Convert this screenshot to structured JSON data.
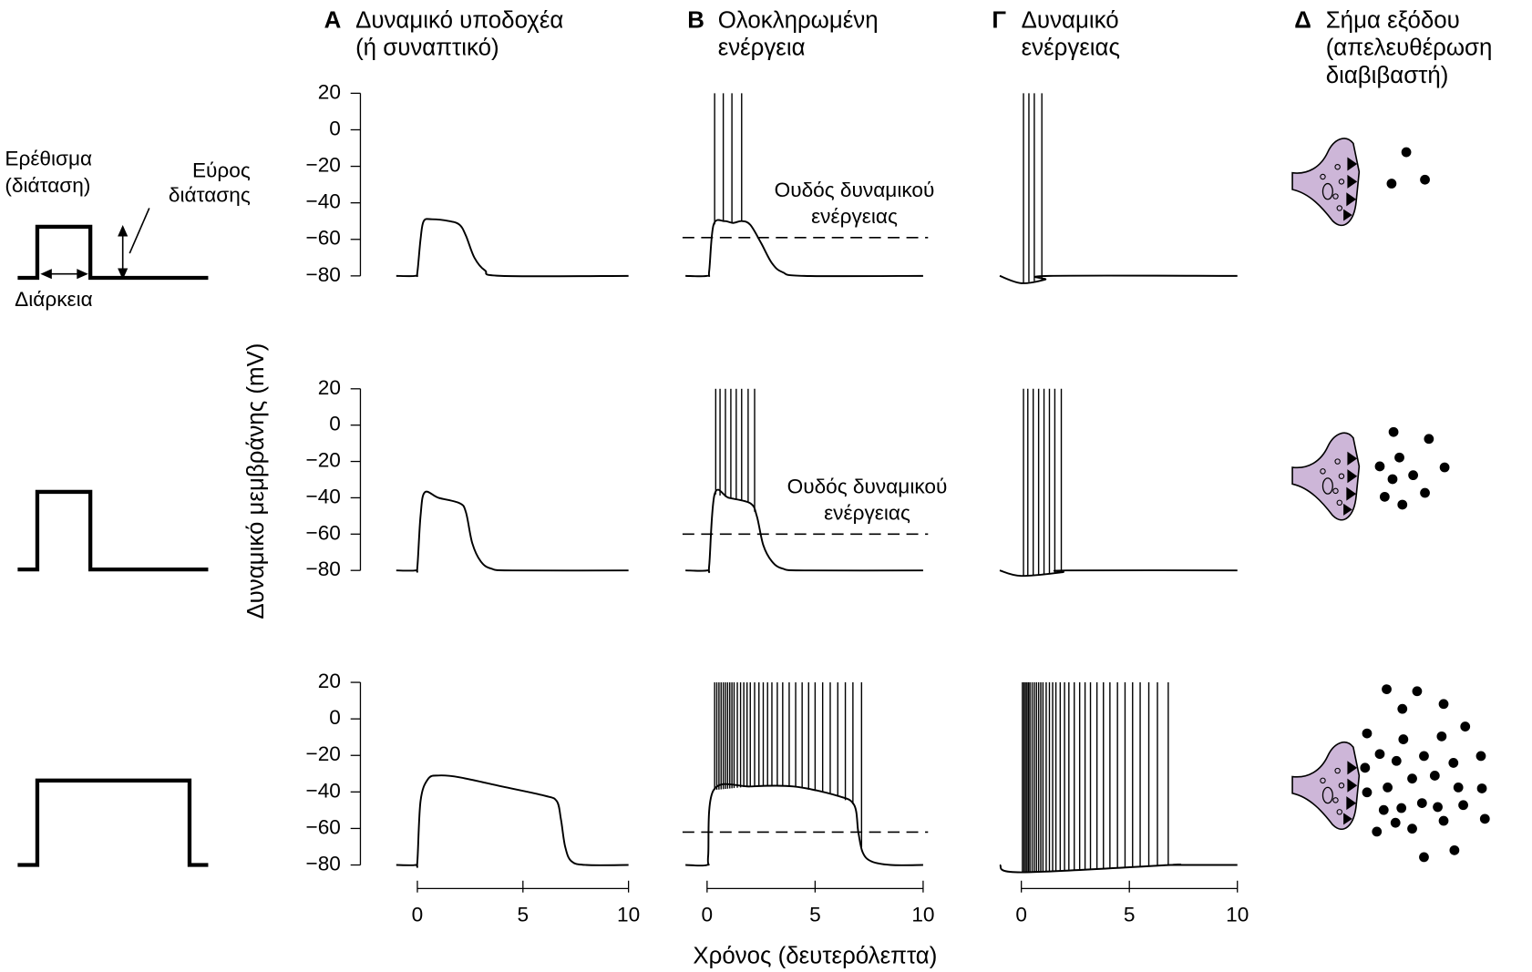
{
  "columns": [
    {
      "letter": "A",
      "title": [
        "Δυναμικό υποδοχέα",
        "(ή συναπτικό)"
      ]
    },
    {
      "letter": "B",
      "title": [
        "Ολοκληρωμένη",
        "ενέργεια"
      ]
    },
    {
      "letter": "Γ",
      "title": [
        "Δυναμικό",
        "ενέργειας"
      ]
    },
    {
      "letter": "Δ",
      "title": [
        "Σήμα εξόδου",
        "(απελευθέρωση",
        "διαβιβαστή)"
      ]
    }
  ],
  "stimulus": {
    "title": [
      "Ερέθισμα",
      "(διάταση)"
    ],
    "amplitude_label": [
      "Εύρος",
      "διάτασης"
    ],
    "duration_label": "Διάρκεια"
  },
  "y_axis_label": "Δυναμικό μεμβράνης (mV)",
  "x_axis_label": "Χρόνος (δευτερόλεπτα)",
  "chart_data": [
    {
      "type": "line",
      "xlim": [
        0,
        10
      ],
      "ylim": [
        -80,
        20
      ],
      "yticks": [
        20,
        0,
        {
          "value": -20,
          "label": "−20"
        },
        {
          "value": -40,
          "label": "−40"
        },
        {
          "value": -60,
          "label": "−60"
        },
        {
          "value": -80,
          "label": "−80"
        }
      ],
      "x": [
        -1,
        -0.1,
        0,
        0.15,
        0.3,
        0.7,
        1.5,
        2,
        2.3,
        2.7,
        3.2,
        4,
        10
      ],
      "values": [
        -80,
        -80,
        -78,
        -60,
        -50,
        -49,
        -50,
        -52,
        -58,
        -70,
        -77,
        -80,
        -80
      ]
    },
    {
      "type": "spikes",
      "xlim": [
        0,
        10
      ],
      "ylim": [
        -80,
        20
      ],
      "threshold": -59,
      "threshold_label": [
        "Ουδός δυναμικού",
        "ενέργειας"
      ],
      "x": [
        -1,
        0,
        0.1,
        0.3,
        0.8,
        1.2,
        1.6,
        2,
        2.5,
        3,
        3.5,
        4.5,
        10
      ],
      "values": [
        -80,
        -80,
        -77,
        -52,
        -50,
        -51,
        -50,
        -52,
        -62,
        -73,
        -78,
        -80,
        -80
      ],
      "spike_peak": 20,
      "spike_times": [
        0.35,
        0.75,
        1.15,
        1.6
      ]
    },
    {
      "type": "spikes",
      "xlim": [
        0,
        10
      ],
      "ylim": [
        -80,
        20
      ],
      "x": [
        -1,
        0,
        1.1,
        1.3,
        10
      ],
      "values": [
        -80,
        -84,
        -82,
        -80,
        -80
      ],
      "spike_peak": 20,
      "spike_times": [
        0.1,
        0.35,
        0.6,
        0.95
      ]
    },
    {
      "type": "line",
      "xlim": [
        0,
        10
      ],
      "ylim": [
        -80,
        20
      ],
      "yticks": [
        20,
        0,
        {
          "value": -20,
          "label": "−20"
        },
        {
          "value": -40,
          "label": "−40"
        },
        {
          "value": -60,
          "label": "−60"
        },
        {
          "value": -80,
          "label": "−80"
        }
      ],
      "x": [
        -1,
        -0.1,
        0,
        0.15,
        0.35,
        1,
        2,
        2.3,
        2.6,
        3,
        3.5,
        4.5,
        10
      ],
      "values": [
        -80,
        -80,
        -78,
        -50,
        -37,
        -40,
        -43,
        -48,
        -65,
        -75,
        -79,
        -80,
        -80
      ]
    },
    {
      "type": "spikes",
      "xlim": [
        0,
        10
      ],
      "ylim": [
        -80,
        20
      ],
      "threshold": -60,
      "threshold_label": [
        "Ουδός δυναμικού",
        "ενέργειας"
      ],
      "x": [
        -1,
        0,
        0.1,
        0.35,
        1,
        2,
        2.3,
        2.6,
        3,
        3.5,
        4.5,
        10
      ],
      "values": [
        -80,
        -80,
        -77,
        -38,
        -40,
        -43,
        -50,
        -66,
        -75,
        -79,
        -80,
        -80
      ],
      "spike_peak": 20,
      "spike_times": [
        0.4,
        0.6,
        0.85,
        1.1,
        1.35,
        1.6,
        1.9,
        2.2
      ]
    },
    {
      "type": "spikes",
      "xlim": [
        0,
        10
      ],
      "ylim": [
        -80,
        20
      ],
      "x": [
        -1,
        0,
        1.9,
        2.1,
        10
      ],
      "values": [
        -80,
        -83,
        -81,
        -80,
        -80
      ],
      "spike_peak": 20,
      "spike_times": [
        0.1,
        0.3,
        0.55,
        0.8,
        1.05,
        1.3,
        1.55,
        1.85
      ]
    },
    {
      "type": "line",
      "xlim": [
        0,
        10
      ],
      "ylim": [
        -80,
        20
      ],
      "xticks": [
        0,
        5,
        10
      ],
      "yticks": [
        20,
        0,
        {
          "value": -20,
          "label": "−20"
        },
        {
          "value": -40,
          "label": "−40"
        },
        {
          "value": -60,
          "label": "−60"
        },
        {
          "value": -80,
          "label": "−80"
        }
      ],
      "x": [
        -1,
        -0.1,
        0,
        0.15,
        0.5,
        1,
        2,
        4,
        6,
        6.6,
        6.8,
        7,
        7.3,
        8,
        10
      ],
      "values": [
        -80,
        -80,
        -78,
        -45,
        -33,
        -31,
        -32,
        -37,
        -42,
        -45,
        -55,
        -70,
        -78,
        -80,
        -80
      ]
    },
    {
      "type": "spikes",
      "xlim": [
        0,
        10
      ],
      "ylim": [
        -80,
        20
      ],
      "xticks": [
        0,
        5,
        10
      ],
      "threshold": -62,
      "x": [
        -1,
        0,
        0.05,
        0.3,
        2,
        4,
        6,
        6.8,
        7,
        7.2,
        7.6,
        8.5,
        10
      ],
      "values": [
        -80,
        -80,
        -75,
        -39,
        -37,
        -37,
        -42,
        -47,
        -62,
        -73,
        -78,
        -80,
        -80
      ],
      "spike_peak": 20,
      "spike_times": [
        0.35,
        0.45,
        0.55,
        0.65,
        0.75,
        0.85,
        0.95,
        1.05,
        1.15,
        1.25,
        1.4,
        1.55,
        1.7,
        1.85,
        2.0,
        2.2,
        2.4,
        2.6,
        2.8,
        3.0,
        3.25,
        3.5,
        3.8,
        4.1,
        4.4,
        4.7,
        5.0,
        5.35,
        5.7,
        6.05,
        6.4,
        6.75,
        7.15
      ]
    },
    {
      "type": "spikes",
      "xlim": [
        0,
        10
      ],
      "ylim": [
        -80,
        20
      ],
      "xticks": [
        0,
        5,
        10
      ],
      "x": [
        -1,
        0,
        6.9,
        7.1,
        10
      ],
      "values": [
        -80,
        -84,
        -80,
        -80,
        -80
      ],
      "spike_peak": 20,
      "spike_times": [
        0.05,
        0.12,
        0.19,
        0.26,
        0.33,
        0.4,
        0.5,
        0.6,
        0.7,
        0.8,
        0.9,
        1.0,
        1.15,
        1.3,
        1.45,
        1.6,
        1.8,
        2.0,
        2.2,
        2.45,
        2.7,
        2.95,
        3.2,
        3.5,
        3.8,
        4.1,
        4.45,
        4.8,
        5.15,
        5.5,
        5.9,
        6.3,
        6.8
      ]
    }
  ]
}
